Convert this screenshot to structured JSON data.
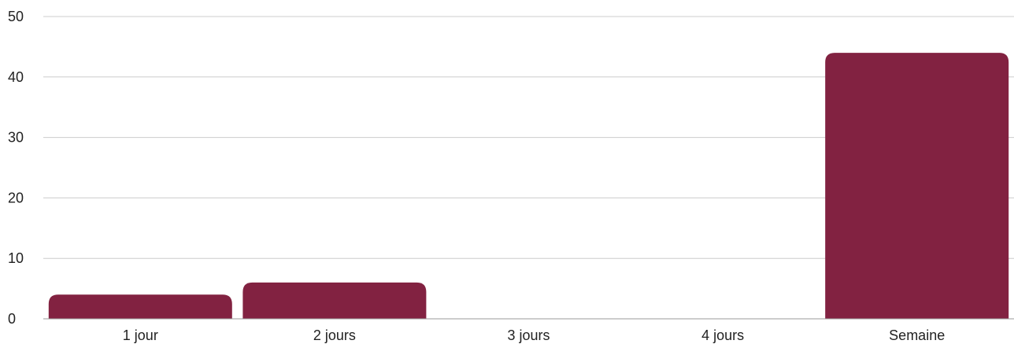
{
  "chart_data": {
    "type": "bar",
    "title": "",
    "xlabel": "",
    "ylabel": "",
    "categories": [
      "1 jour",
      "2 jours",
      "3 jours",
      "4 jours",
      "Semaine"
    ],
    "values": [
      4,
      6,
      0,
      0,
      44
    ],
    "ylim": [
      0,
      50
    ],
    "yticks": [
      0,
      10,
      20,
      30,
      40,
      50
    ],
    "grid": true,
    "legend": "none",
    "bar_color": "#822241"
  }
}
